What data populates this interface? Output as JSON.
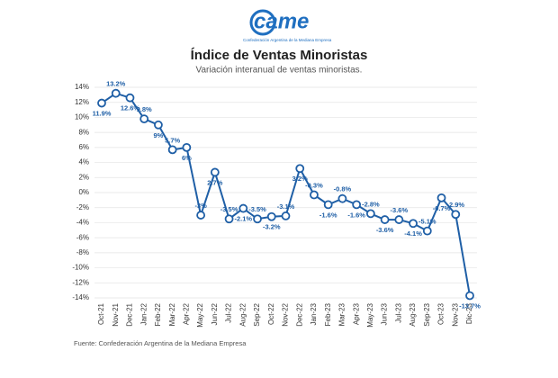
{
  "logo": {
    "name": "came",
    "tagline": "Confederación Argentina de la Mediana Empresa"
  },
  "chart_data": {
    "type": "line",
    "title": "Índice de Ventas Minoristas",
    "subtitle": "Variación interanual de ventas minoristas.",
    "source": "Fuente: Confederación Argentina de la Mediana Empresa",
    "categories": [
      "Oct-21",
      "Nov-21",
      "Dec-21",
      "Jan-22",
      "Feb-22",
      "Mar-22",
      "Apr-22",
      "May-22",
      "Jun-22",
      "Jul-22",
      "Aug-22",
      "Sep-22",
      "Oct-22",
      "Nov-22",
      "Dec-22",
      "Jan-23",
      "Feb-23",
      "Mar-23",
      "Apr-23",
      "May-23",
      "Jun-23",
      "Jul-23",
      "Aug-23",
      "Sep-23",
      "Oct-23",
      "Nov-23",
      "Dic-23"
    ],
    "series": [
      {
        "name": "Ventas minoristas",
        "color": "#1f5fa6",
        "values": [
          11.9,
          13.2,
          12.6,
          9.8,
          9,
          5.7,
          6,
          -3,
          2.7,
          -3.5,
          -2.1,
          -3.5,
          -3.2,
          -3.1,
          3.2,
          -0.3,
          -1.6,
          -0.8,
          -1.6,
          -2.8,
          -3.6,
          -3.6,
          -4.1,
          -5.1,
          -0.7,
          -2.9,
          -13.7
        ],
        "value_labels": [
          "11.9%",
          "13.2%",
          "12.6%",
          "9.8%",
          "9%",
          "5.7%",
          "6%",
          "-3%",
          "2.7%",
          "-3.5%",
          "-2.1%",
          "-3.5%",
          "-3.2%",
          "-3.1%",
          "3.2%",
          "-0.3%",
          "-1.6%",
          "-0.8%",
          "-1.6%",
          "-2.8%",
          "-3.6%",
          "-3.6%",
          "-4.1%",
          "-5.1%",
          "-0.7%",
          "-2.9%",
          "-13.7%"
        ]
      }
    ],
    "ylim": [
      -14,
      14
    ],
    "yticks": [
      {
        "value": -14,
        "label": "-14%"
      },
      {
        "value": -12,
        "label": "-12%"
      },
      {
        "value": -10,
        "label": "-10%"
      },
      {
        "value": -8,
        "label": "-8%"
      },
      {
        "value": -6,
        "label": "-6%"
      },
      {
        "value": -4,
        "label": "-4%"
      },
      {
        "value": -2,
        "label": "-2%"
      },
      {
        "value": 0,
        "label": "0%"
      },
      {
        "value": 2,
        "label": "2%"
      },
      {
        "value": 4,
        "label": "4%"
      },
      {
        "value": 6,
        "label": "6%"
      },
      {
        "value": 8,
        "label": "8%"
      },
      {
        "value": 10,
        "label": "10%"
      },
      {
        "value": 12,
        "label": "12%"
      },
      {
        "value": 14,
        "label": "14%"
      }
    ],
    "grid": true
  }
}
